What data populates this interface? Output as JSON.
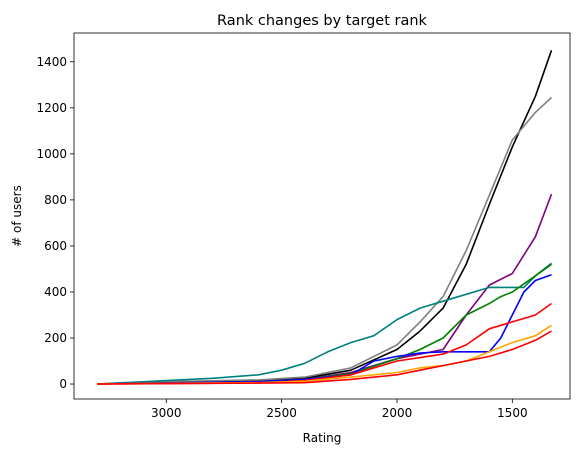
{
  "chart_data": {
    "type": "line",
    "title": "Rank changes by target rank",
    "xlabel": "Rating",
    "ylabel": "# of users",
    "xlim": [
      3400,
      1250
    ],
    "ylim": [
      -65,
      1525
    ],
    "x_reversed": true,
    "grid": false,
    "legend": "none",
    "xticks": [
      3000,
      2500,
      2000,
      1500
    ],
    "yticks": [
      0,
      200,
      400,
      600,
      800,
      1000,
      1200,
      1400
    ],
    "series": [
      {
        "color": "#000000",
        "points": [
          [
            3300,
            0
          ],
          [
            3000,
            8
          ],
          [
            2600,
            15
          ],
          [
            2400,
            25
          ],
          [
            2200,
            60
          ],
          [
            2000,
            150
          ],
          [
            1900,
            230
          ],
          [
            1800,
            330
          ],
          [
            1700,
            520
          ],
          [
            1600,
            780
          ],
          [
            1500,
            1030
          ],
          [
            1400,
            1250
          ],
          [
            1330,
            1450
          ]
        ]
      },
      {
        "color": "#808080",
        "points": [
          [
            3300,
            0
          ],
          [
            3000,
            10
          ],
          [
            2600,
            18
          ],
          [
            2400,
            30
          ],
          [
            2200,
            70
          ],
          [
            2000,
            170
          ],
          [
            1900,
            270
          ],
          [
            1800,
            380
          ],
          [
            1700,
            580
          ],
          [
            1600,
            820
          ],
          [
            1500,
            1060
          ],
          [
            1400,
            1180
          ],
          [
            1330,
            1245
          ]
        ]
      },
      {
        "color": "#800080",
        "points": [
          [
            3300,
            0
          ],
          [
            3000,
            5
          ],
          [
            2600,
            10
          ],
          [
            2400,
            20
          ],
          [
            2200,
            50
          ],
          [
            2000,
            110
          ],
          [
            1900,
            130
          ],
          [
            1800,
            150
          ],
          [
            1700,
            300
          ],
          [
            1600,
            430
          ],
          [
            1500,
            480
          ],
          [
            1400,
            640
          ],
          [
            1330,
            825
          ]
        ]
      },
      {
        "color": "#008080",
        "points": [
          [
            3300,
            0
          ],
          [
            3000,
            15
          ],
          [
            2800,
            25
          ],
          [
            2600,
            40
          ],
          [
            2500,
            60
          ],
          [
            2400,
            90
          ],
          [
            2300,
            140
          ],
          [
            2200,
            180
          ],
          [
            2100,
            210
          ],
          [
            2000,
            280
          ],
          [
            1900,
            330
          ],
          [
            1800,
            360
          ],
          [
            1700,
            390
          ],
          [
            1600,
            420
          ],
          [
            1500,
            420
          ],
          [
            1450,
            420
          ],
          [
            1400,
            470
          ],
          [
            1330,
            525
          ]
        ]
      },
      {
        "color": "#008000",
        "points": [
          [
            3300,
            0
          ],
          [
            3000,
            5
          ],
          [
            2600,
            10
          ],
          [
            2400,
            20
          ],
          [
            2200,
            45
          ],
          [
            2000,
            110
          ],
          [
            1900,
            150
          ],
          [
            1800,
            200
          ],
          [
            1700,
            300
          ],
          [
            1600,
            350
          ],
          [
            1550,
            380
          ],
          [
            1500,
            400
          ],
          [
            1400,
            470
          ],
          [
            1330,
            520
          ]
        ]
      },
      {
        "color": "#0000ff",
        "points": [
          [
            3300,
            0
          ],
          [
            3000,
            5
          ],
          [
            2600,
            10
          ],
          [
            2400,
            20
          ],
          [
            2200,
            40
          ],
          [
            2100,
            100
          ],
          [
            2000,
            120
          ],
          [
            1900,
            135
          ],
          [
            1800,
            140
          ],
          [
            1700,
            140
          ],
          [
            1600,
            140
          ],
          [
            1550,
            200
          ],
          [
            1500,
            300
          ],
          [
            1450,
            400
          ],
          [
            1400,
            450
          ],
          [
            1330,
            475
          ]
        ]
      },
      {
        "color": "#ff0000",
        "points": [
          [
            3300,
            0
          ],
          [
            3000,
            2
          ],
          [
            2600,
            5
          ],
          [
            2400,
            15
          ],
          [
            2200,
            40
          ],
          [
            2000,
            100
          ],
          [
            1900,
            115
          ],
          [
            1800,
            130
          ],
          [
            1700,
            170
          ],
          [
            1600,
            240
          ],
          [
            1500,
            270
          ],
          [
            1400,
            300
          ],
          [
            1330,
            350
          ]
        ]
      },
      {
        "color": "#ffa500",
        "points": [
          [
            3300,
            0
          ],
          [
            3000,
            3
          ],
          [
            2600,
            6
          ],
          [
            2400,
            12
          ],
          [
            2200,
            30
          ],
          [
            2100,
            40
          ],
          [
            2000,
            50
          ],
          [
            1900,
            70
          ],
          [
            1800,
            80
          ],
          [
            1700,
            100
          ],
          [
            1600,
            140
          ],
          [
            1500,
            180
          ],
          [
            1400,
            210
          ],
          [
            1330,
            255
          ]
        ]
      },
      {
        "color": "#ff0000",
        "points": [
          [
            3300,
            0
          ],
          [
            3000,
            2
          ],
          [
            2600,
            4
          ],
          [
            2400,
            6
          ],
          [
            2200,
            20
          ],
          [
            2000,
            40
          ],
          [
            1900,
            60
          ],
          [
            1800,
            80
          ],
          [
            1700,
            100
          ],
          [
            1600,
            120
          ],
          [
            1500,
            150
          ],
          [
            1400,
            190
          ],
          [
            1330,
            230
          ]
        ]
      }
    ]
  }
}
